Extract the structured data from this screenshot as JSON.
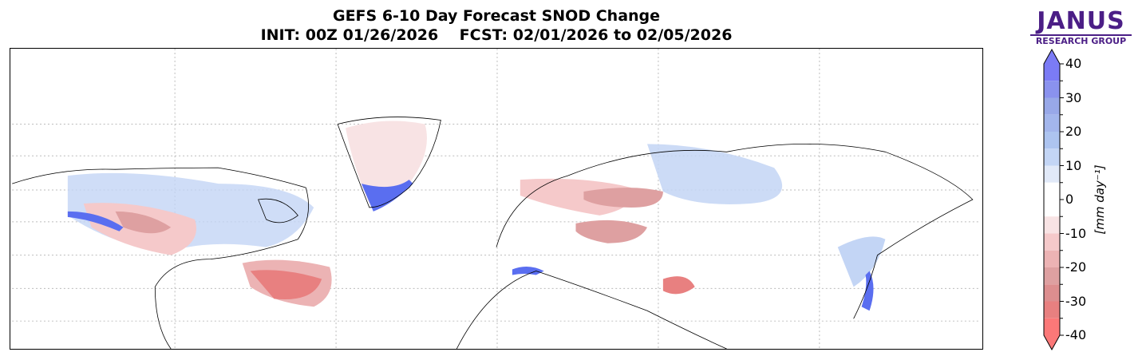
{
  "title": {
    "line1": "GEFS 6-10 Day Forecast SNOD Change",
    "line2": "INIT: 00Z 01/26/2026    FCST: 02/01/2026 to 02/05/2026"
  },
  "logo": {
    "name": "JANUS",
    "subtitle": "RESEARCH GROUP",
    "color": "#4b1e86"
  },
  "colorbar": {
    "label": "[mm day⁻¹]",
    "range": [
      -40,
      40
    ],
    "ticks": [
      "40",
      "30",
      "20",
      "10",
      "0",
      "-10",
      "-20",
      "-30",
      "-40"
    ],
    "tick_values": [
      40,
      30,
      20,
      10,
      0,
      -10,
      -20,
      -30,
      -40
    ],
    "bins": [
      {
        "from": 35,
        "to": 40,
        "color": "#7b7bf5"
      },
      {
        "from": 30,
        "to": 35,
        "color": "#8a92ee"
      },
      {
        "from": 25,
        "to": 30,
        "color": "#98a8e8"
      },
      {
        "from": 20,
        "to": 25,
        "color": "#a3b6ec"
      },
      {
        "from": 15,
        "to": 20,
        "color": "#adc4f0"
      },
      {
        "from": 10,
        "to": 15,
        "color": "#c3d5f5"
      },
      {
        "from": 5,
        "to": 10,
        "color": "#e1e9f8"
      },
      {
        "from": -5,
        "to": 5,
        "color": "#ffffff"
      },
      {
        "from": -10,
        "to": -5,
        "color": "#f8e3e4"
      },
      {
        "from": -15,
        "to": -10,
        "color": "#f5c9ca"
      },
      {
        "from": -20,
        "to": -15,
        "color": "#ecb3b4"
      },
      {
        "from": -25,
        "to": -20,
        "color": "#dea0a1"
      },
      {
        "from": -30,
        "to": -25,
        "color": "#dd8e8f"
      },
      {
        "from": -35,
        "to": -30,
        "color": "#e88080"
      },
      {
        "from": -40,
        "to": -35,
        "color": "#fb7878"
      }
    ],
    "over_color": "#7b7bf5",
    "under_color": "#fb7878"
  }
}
